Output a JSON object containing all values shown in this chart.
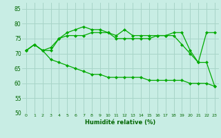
{
  "bg_color": "#c8ede4",
  "grid_color": "#a8d4c8",
  "line_color": "#00aa00",
  "marker_color": "#00aa00",
  "xlabel": "Humidité relative (%)",
  "xlabel_color": "#006600",
  "tick_color": "#006600",
  "ylim": [
    50,
    87
  ],
  "xlim": [
    -0.5,
    23.5
  ],
  "yticks": [
    50,
    55,
    60,
    65,
    70,
    75,
    80,
    85
  ],
  "xticks": [
    0,
    1,
    2,
    3,
    4,
    5,
    6,
    7,
    8,
    9,
    10,
    11,
    12,
    13,
    14,
    15,
    16,
    17,
    18,
    19,
    20,
    21,
    22,
    23
  ],
  "series": [
    [
      71,
      73,
      71,
      71,
      75,
      77,
      78,
      79,
      78,
      78,
      77,
      76,
      78,
      76,
      76,
      76,
      76,
      76,
      77,
      77,
      71,
      67,
      77,
      77
    ],
    [
      71,
      73,
      71,
      72,
      75,
      76,
      76,
      76,
      77,
      77,
      77,
      75,
      75,
      75,
      75,
      75,
      76,
      76,
      76,
      73,
      70,
      67,
      67,
      59
    ],
    [
      71,
      73,
      71,
      68,
      67,
      66,
      65,
      64,
      63,
      63,
      62,
      62,
      62,
      62,
      62,
      61,
      61,
      61,
      61,
      61,
      60,
      60,
      60,
      59
    ]
  ]
}
